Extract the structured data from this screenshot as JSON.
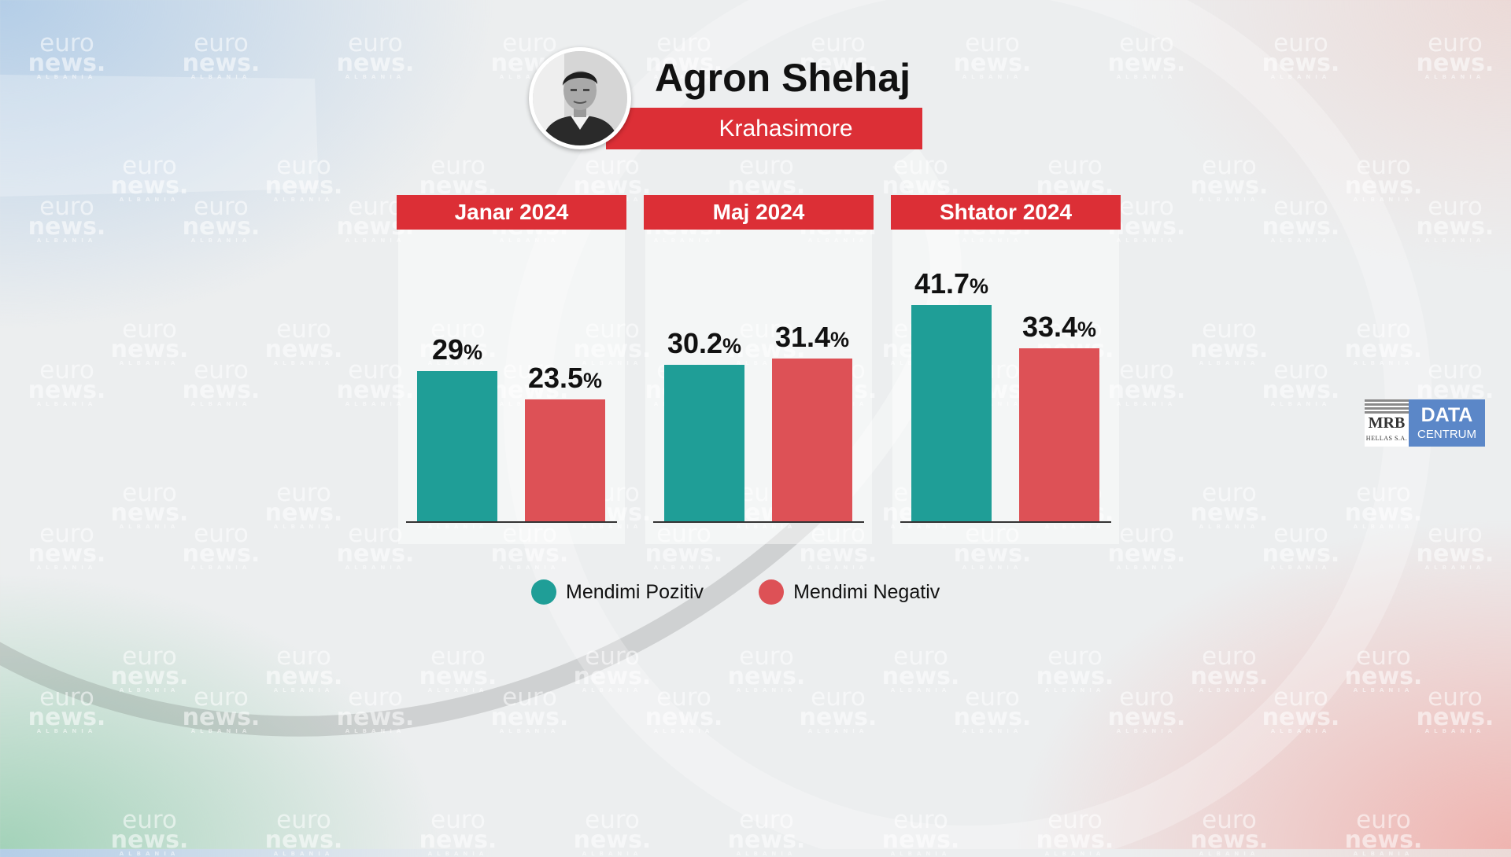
{
  "header": {
    "name": "Agron Shehaj",
    "party": "Krahasimore"
  },
  "watermark": {
    "line1": "euro",
    "line2": "news.",
    "line3": "ALBANIA"
  },
  "colors": {
    "positive": "#1f9e97",
    "negative": "#dd5156",
    "accent": "#dc2f36"
  },
  "chart_data": {
    "type": "bar",
    "unit": "%",
    "ylim": [
      0,
      50
    ],
    "grid": false,
    "legend_placement": "bottom",
    "series": [
      {
        "name": "Mendimi Pozitiv",
        "values": [
          29,
          30.2,
          41.7
        ],
        "labels": [
          "29",
          "30.2",
          "41.7"
        ]
      },
      {
        "name": "Mendimi Negativ",
        "values": [
          23.5,
          31.4,
          33.4
        ],
        "labels": [
          "23.5",
          "31.4",
          "33.4"
        ]
      }
    ],
    "categories": [
      "Janar 2024",
      "Maj 2024",
      "Shtator 2024"
    ]
  },
  "legend": {
    "positive": "Mendimi Pozitiv",
    "negative": "Mendimi Negativ"
  },
  "logo": {
    "mrb": "MRB",
    "mrb_sub": "HELLAS S.A.",
    "data": "DATA",
    "centrum": "CENTRUM"
  }
}
